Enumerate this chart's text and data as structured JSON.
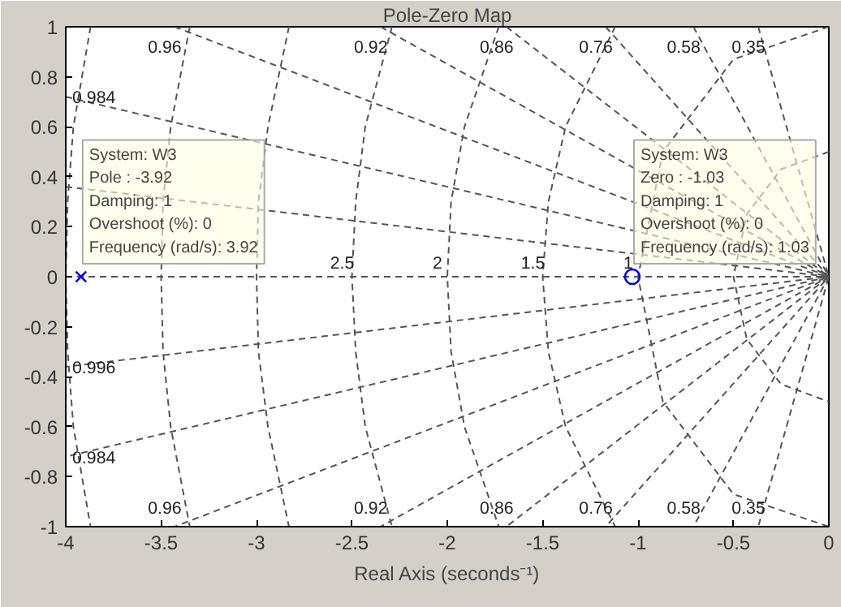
{
  "chart_data": {
    "type": "line",
    "title": "Pole-Zero Map",
    "xlabel": "Real Axis (seconds⁻¹)",
    "xlim": [
      -4,
      0
    ],
    "ylim": [
      -1,
      1
    ],
    "xticks": [
      -4,
      -3.5,
      -3,
      -2.5,
      -2,
      -1.5,
      -1,
      -0.5,
      0
    ],
    "yticks": [
      -1,
      -0.8,
      -0.6,
      -0.4,
      -0.2,
      0,
      0.2,
      0.4,
      0.6,
      0.8,
      1
    ],
    "grid": false,
    "legend": false,
    "line_style": "dashed",
    "series": [
      {
        "name": "0.96",
        "color": "#555555",
        "x": [
          -3.43,
          0,
          -3.43
        ],
        "values": [
          1,
          0,
          -1
        ]
      },
      {
        "name": "0.92",
        "color": "#555555",
        "x": [
          -2.35,
          0,
          -2.35
        ],
        "values": [
          1,
          0,
          -1
        ]
      },
      {
        "name": "0.86",
        "color": "#555555",
        "x": [
          -1.69,
          0,
          -1.69
        ],
        "values": [
          1,
          0,
          -1
        ]
      },
      {
        "name": "0.76",
        "color": "#555555",
        "x": [
          -1.17,
          0,
          -1.17
        ],
        "values": [
          1,
          0,
          -1
        ]
      },
      {
        "name": "0.58",
        "color": "#555555",
        "x": [
          -0.71,
          0,
          -0.71
        ],
        "values": [
          1,
          0,
          -1
        ]
      },
      {
        "name": "0.35",
        "color": "#555555",
        "x": [
          -0.37,
          0,
          -0.37
        ],
        "values": [
          1,
          0,
          -1
        ]
      },
      {
        "name": "0.984",
        "color": "#555555",
        "x": [
          -4,
          0,
          -4
        ],
        "values": [
          0.72,
          0,
          -0.72
        ]
      },
      {
        "color": "#555555",
        "x": [
          -4,
          0,
          -4
        ],
        "values": [
          0.36,
          0,
          -0.36
        ]
      },
      {
        "color": "#555555",
        "x": [
          -4,
          0
        ],
        "values": [
          0,
          0
        ]
      },
      {
        "color": "#555555",
        "x": [
          0,
          -0.25,
          -0.43,
          -0.5,
          -0.43,
          -0.25,
          0
        ],
        "values": [
          0.5,
          0.43,
          0.25,
          0,
          -0.25,
          -0.43,
          -0.5
        ]
      },
      {
        "name": "1",
        "color": "#555555",
        "x": [
          0,
          -0.5,
          -0.87,
          -1,
          -0.87,
          -0.5,
          0
        ],
        "values": [
          1,
          0.87,
          0.5,
          0,
          -0.5,
          -0.87,
          -1
        ]
      },
      {
        "name": "1.5",
        "color": "#555555",
        "x": [
          -1.12,
          -1.38,
          -1.47,
          -1.5,
          -1.47,
          -1.38,
          -1.12
        ],
        "values": [
          1,
          0.6,
          0.3,
          0,
          -0.3,
          -0.6,
          -1
        ]
      },
      {
        "name": "2",
        "color": "#555555",
        "x": [
          -1.73,
          -1.91,
          -1.98,
          -2,
          -1.98,
          -1.91,
          -1.73
        ],
        "values": [
          1,
          0.6,
          0.3,
          0,
          -0.3,
          -0.6,
          -1
        ]
      },
      {
        "name": "2.5",
        "color": "#555555",
        "x": [
          -2.29,
          -2.43,
          -2.48,
          -2.5,
          -2.48,
          -2.43,
          -2.29
        ],
        "values": [
          1,
          0.6,
          0.3,
          0,
          -0.3,
          -0.6,
          -1
        ]
      },
      {
        "color": "#555555",
        "x": [
          -2.83,
          -2.94,
          -2.99,
          -3,
          -2.99,
          -2.94,
          -2.83
        ],
        "values": [
          1,
          0.6,
          0.3,
          0,
          -0.3,
          -0.6,
          -1
        ]
      },
      {
        "color": "#555555",
        "x": [
          -3.35,
          -3.45,
          -3.49,
          -3.5,
          -3.49,
          -3.45,
          -3.35
        ],
        "values": [
          1,
          0.6,
          0.3,
          0,
          -0.3,
          -0.6,
          -1
        ]
      },
      {
        "color": "#555555",
        "x": [
          -3.87,
          -3.96,
          -3.99,
          -4,
          -3.99,
          -3.96,
          -3.87
        ],
        "values": [
          1,
          0.6,
          0.3,
          0,
          -0.3,
          -0.6,
          -1
        ]
      },
      {
        "type": "scatter",
        "marker": "cross",
        "color": "#0000ff",
        "x": [
          -3.92
        ],
        "values": [
          0
        ]
      },
      {
        "type": "scatter",
        "marker": "circle",
        "color": "#0000ff",
        "x": [
          -1.03
        ],
        "values": [
          0
        ]
      }
    ],
    "annotations": [
      {
        "text": "System: W3\nPole : -3.92\nDamping: 1\nOvershoot (%): 0\nFrequency (rad/s): 3.92",
        "x": -3.92,
        "y": 0
      },
      {
        "text": "System: W3\nZero : -1.03\nDamping: 1\nOvershoot (%): 0\nFrequency (rad/s): 1.03",
        "x": -1.03,
        "y": 0
      },
      "0.996"
    ]
  }
}
